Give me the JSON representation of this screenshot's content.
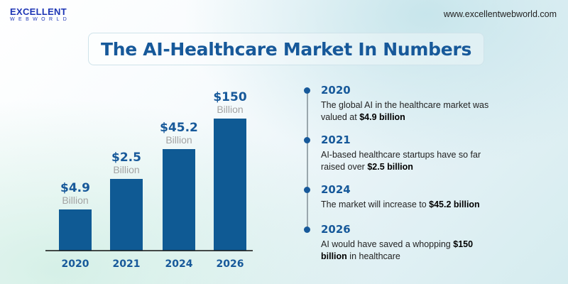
{
  "header": {
    "logo_line1": "EXCELLENT",
    "logo_line2": "WEBWORLD",
    "url": "www.excellentwebworld.com"
  },
  "title": "The AI-Healthcare Market In Numbers",
  "colors": {
    "bar": "#0f5a94",
    "title": "#17599a",
    "unit": "#a3a3a3",
    "axis": "#111111"
  },
  "chart_data": {
    "type": "bar",
    "categories": [
      "2020",
      "2021",
      "2024",
      "2026"
    ],
    "values": [
      4.9,
      2.5,
      45.2,
      150
    ],
    "value_labels": [
      "$4.9",
      "$2.5",
      "$45.2",
      "$150"
    ],
    "unit_label": "Billion",
    "scale": "not to scale (bars ascend by year)",
    "grid": false
  },
  "timeline": [
    {
      "year": "2020",
      "text": "The global AI in the healthcare market was valued at ",
      "bold": "$4.9 billion",
      "after": ""
    },
    {
      "year": "2021",
      "text": "AI-based healthcare startups have so far raised over ",
      "bold": "$2.5 billion",
      "after": ""
    },
    {
      "year": "2024",
      "text": "The market will increase to ",
      "bold": "$45.2 billion",
      "after": ""
    },
    {
      "year": "2026",
      "text": "AI would have saved a whopping ",
      "bold": "$150 billion",
      "after": " in healthcare"
    }
  ]
}
